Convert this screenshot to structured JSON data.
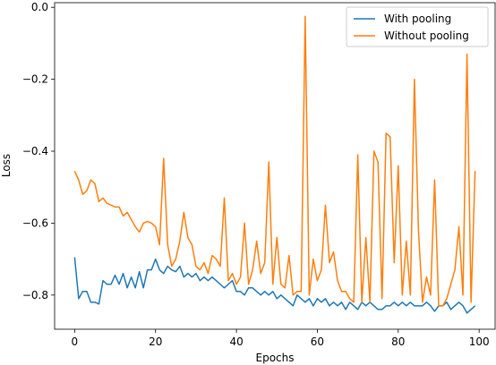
{
  "chart_data": {
    "type": "line",
    "xlabel": "Epochs",
    "ylabel": "Loss",
    "x": [
      0,
      1,
      2,
      3,
      4,
      5,
      6,
      7,
      8,
      9,
      10,
      11,
      12,
      13,
      14,
      15,
      16,
      17,
      18,
      19,
      20,
      21,
      22,
      23,
      24,
      25,
      26,
      27,
      28,
      29,
      30,
      31,
      32,
      33,
      34,
      35,
      36,
      37,
      38,
      39,
      40,
      41,
      42,
      43,
      44,
      45,
      46,
      47,
      48,
      49,
      50,
      51,
      52,
      53,
      54,
      55,
      56,
      57,
      58,
      59,
      60,
      61,
      62,
      63,
      64,
      65,
      66,
      67,
      68,
      69,
      70,
      71,
      72,
      73,
      74,
      75,
      76,
      77,
      78,
      79,
      80,
      81,
      82,
      83,
      84,
      85,
      86,
      87,
      88,
      89,
      90,
      91,
      92,
      93,
      94,
      95,
      96,
      97,
      98,
      99
    ],
    "series": [
      {
        "name": "With pooling",
        "color": "#1f77b4",
        "values": [
          -0.695,
          -0.81,
          -0.79,
          -0.79,
          -0.82,
          -0.82,
          -0.825,
          -0.76,
          -0.77,
          -0.77,
          -0.745,
          -0.77,
          -0.74,
          -0.78,
          -0.75,
          -0.78,
          -0.735,
          -0.78,
          -0.73,
          -0.73,
          -0.7,
          -0.73,
          -0.74,
          -0.72,
          -0.73,
          -0.735,
          -0.72,
          -0.75,
          -0.74,
          -0.75,
          -0.74,
          -0.76,
          -0.75,
          -0.76,
          -0.75,
          -0.76,
          -0.77,
          -0.78,
          -0.77,
          -0.76,
          -0.79,
          -0.79,
          -0.8,
          -0.78,
          -0.78,
          -0.79,
          -0.8,
          -0.79,
          -0.8,
          -0.79,
          -0.81,
          -0.8,
          -0.81,
          -0.82,
          -0.83,
          -0.8,
          -0.81,
          -0.82,
          -0.81,
          -0.83,
          -0.81,
          -0.82,
          -0.81,
          -0.83,
          -0.82,
          -0.83,
          -0.82,
          -0.84,
          -0.82,
          -0.83,
          -0.84,
          -0.82,
          -0.83,
          -0.82,
          -0.83,
          -0.84,
          -0.84,
          -0.83,
          -0.83,
          -0.82,
          -0.83,
          -0.82,
          -0.83,
          -0.82,
          -0.83,
          -0.83,
          -0.83,
          -0.82,
          -0.83,
          -0.845,
          -0.83,
          -0.83,
          -0.82,
          -0.84,
          -0.83,
          -0.82,
          -0.83,
          -0.85,
          -0.84,
          -0.83
        ]
      },
      {
        "name": "Without pooling",
        "color": "#ff7f0e",
        "values": [
          -0.455,
          -0.48,
          -0.52,
          -0.51,
          -0.48,
          -0.49,
          -0.54,
          -0.53,
          -0.545,
          -0.55,
          -0.555,
          -0.555,
          -0.58,
          -0.57,
          -0.59,
          -0.61,
          -0.625,
          -0.6,
          -0.595,
          -0.6,
          -0.61,
          -0.66,
          -0.42,
          -0.66,
          -0.72,
          -0.7,
          -0.65,
          -0.57,
          -0.64,
          -0.66,
          -0.72,
          -0.73,
          -0.71,
          -0.74,
          -0.69,
          -0.7,
          -0.72,
          -0.53,
          -0.76,
          -0.74,
          -0.77,
          -0.75,
          -0.6,
          -0.77,
          -0.73,
          -0.65,
          -0.74,
          -0.71,
          -0.43,
          -0.77,
          -0.64,
          -0.77,
          -0.78,
          -0.69,
          -0.8,
          -0.79,
          -0.79,
          -0.025,
          -0.8,
          -0.7,
          -0.76,
          -0.73,
          -0.55,
          -0.71,
          -0.68,
          -0.76,
          -0.79,
          -0.79,
          -0.81,
          -0.82,
          -0.41,
          -0.82,
          -0.64,
          -0.82,
          -0.4,
          -0.43,
          -0.81,
          -0.35,
          -0.36,
          -0.71,
          -0.44,
          -0.8,
          -0.65,
          -0.8,
          -0.2,
          -0.62,
          -0.82,
          -0.75,
          -0.8,
          -0.48,
          -0.83,
          -0.83,
          -0.81,
          -0.77,
          -0.73,
          -0.61,
          -0.8,
          -0.13,
          -0.82,
          -0.455
        ]
      }
    ],
    "xlim": [
      -4.95,
      103.95
    ],
    "xticks": [
      0,
      20,
      40,
      60,
      80,
      100
    ],
    "ylim": [
      -0.895,
      0.013
    ],
    "yticks": [
      {
        "value": -0.8,
        "label": "−0.8"
      },
      {
        "value": -0.6,
        "label": "−0.6"
      },
      {
        "value": -0.4,
        "label": "−0.4"
      },
      {
        "value": -0.2,
        "label": "−0.2"
      },
      {
        "value": 0.0,
        "label": "0.0"
      }
    ],
    "legend": "upper right",
    "grid": false
  }
}
